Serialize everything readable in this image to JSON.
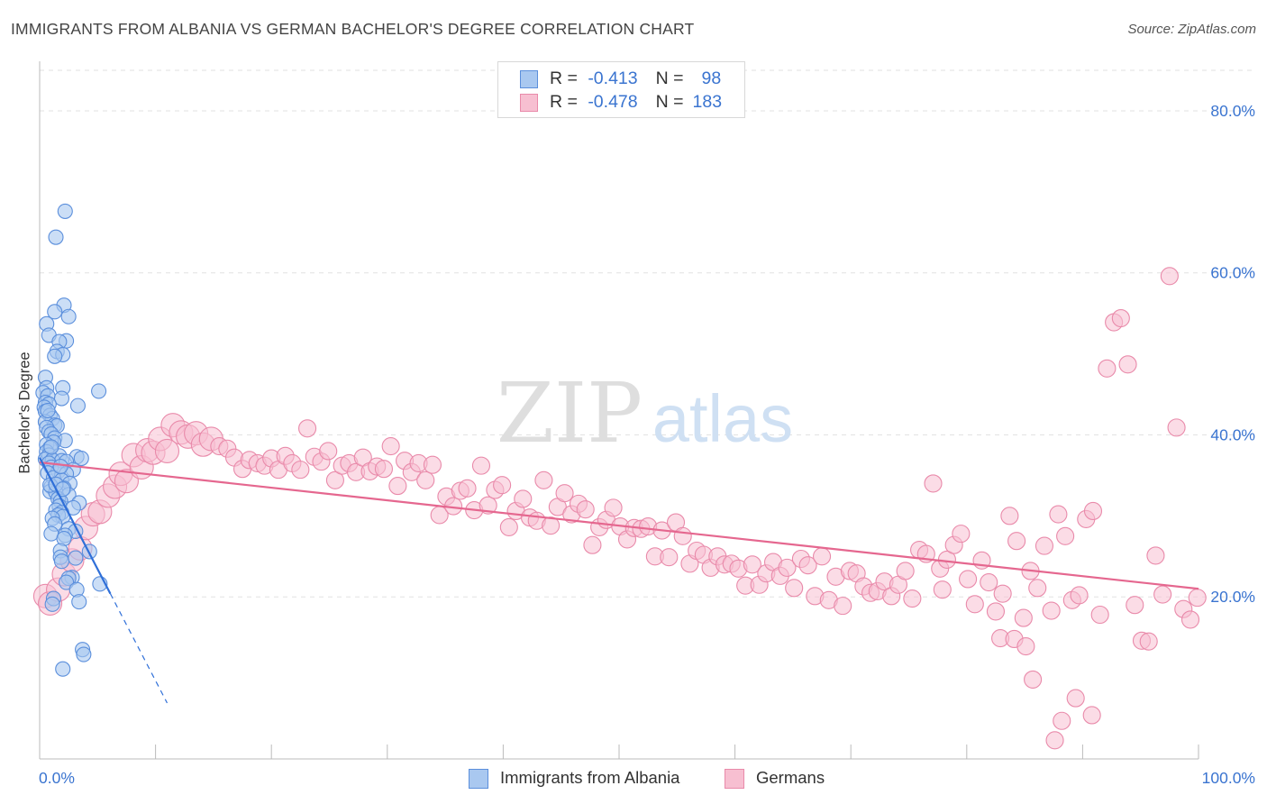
{
  "title": "IMMIGRANTS FROM ALBANIA VS GERMAN BACHELOR'S DEGREE CORRELATION CHART",
  "source": "Source: ZipAtlas.com",
  "watermark": {
    "zip": "ZIP",
    "atlas": "atlas"
  },
  "legend": {
    "r_label": "R =",
    "n_label": "N =",
    "albania": {
      "r": "-0.413",
      "n": "98"
    },
    "germans": {
      "r": "-0.478",
      "n": "183"
    }
  },
  "colors": {
    "albania_fill": "#a9c8f0",
    "albania_stroke": "#5b8fdc",
    "albania_line": "#2f6fd8",
    "germans_fill": "#f7bfd1",
    "germans_stroke": "#e98aaa",
    "germans_line": "#e5678f",
    "axis_text": "#3a74d0",
    "grid": "#e2e2e2"
  },
  "chart_data": {
    "type": "scatter",
    "title": "IMMIGRANTS FROM ALBANIA VS GERMAN BACHELOR'S DEGREE CORRELATION CHART",
    "xlabel": "",
    "ylabel": "Bachelor's Degree",
    "xlim": [
      0,
      100
    ],
    "ylim": [
      0,
      85
    ],
    "x_tick_labels": [
      "0.0%",
      "100.0%"
    ],
    "y_ticks": [
      20,
      40,
      60,
      80
    ],
    "y_tick_labels": [
      "20.0%",
      "40.0%",
      "60.0%",
      "80.0%"
    ],
    "grid": true,
    "legend_position": "bottom",
    "series": [
      {
        "name": "Immigrants from Albania",
        "trend": {
          "x0": 0.0,
          "y0": 37.2,
          "x1": 6.1,
          "y1": 20.4,
          "dashed_to_x": 11.0
        },
        "points": [
          [
            2.2,
            67.6
          ],
          [
            1.4,
            64.4
          ],
          [
            2.1,
            56.0
          ],
          [
            1.3,
            55.2
          ],
          [
            2.5,
            54.6
          ],
          [
            0.6,
            53.7
          ],
          [
            0.8,
            52.3
          ],
          [
            2.3,
            51.6
          ],
          [
            1.7,
            51.5
          ],
          [
            1.5,
            50.3
          ],
          [
            2.0,
            49.9
          ],
          [
            1.3,
            49.7
          ],
          [
            0.5,
            47.1
          ],
          [
            0.6,
            45.8
          ],
          [
            2.0,
            45.8
          ],
          [
            5.1,
            45.4
          ],
          [
            0.3,
            45.2
          ],
          [
            0.7,
            44.8
          ],
          [
            1.9,
            44.5
          ],
          [
            0.5,
            44.0
          ],
          [
            0.8,
            43.8
          ],
          [
            3.3,
            43.6
          ],
          [
            0.4,
            43.4
          ],
          [
            0.5,
            42.9
          ],
          [
            0.9,
            42.4
          ],
          [
            1.1,
            42.0
          ],
          [
            0.5,
            41.6
          ],
          [
            1.3,
            41.2
          ],
          [
            1.5,
            41.1
          ],
          [
            0.6,
            40.9
          ],
          [
            0.8,
            40.4
          ],
          [
            1.0,
            40.1
          ],
          [
            1.3,
            39.6
          ],
          [
            2.2,
            39.3
          ],
          [
            1.2,
            39.1
          ],
          [
            0.6,
            38.8
          ],
          [
            0.9,
            38.4
          ],
          [
            0.6,
            37.9
          ],
          [
            0.8,
            37.5
          ],
          [
            1.7,
            37.4
          ],
          [
            3.2,
            37.3
          ],
          [
            3.6,
            37.1
          ],
          [
            0.5,
            37.0
          ],
          [
            1.1,
            36.9
          ],
          [
            1.9,
            36.8
          ],
          [
            2.3,
            36.7
          ],
          [
            0.8,
            36.5
          ],
          [
            1.0,
            36.0
          ],
          [
            2.9,
            35.7
          ],
          [
            1.6,
            35.5
          ],
          [
            0.7,
            35.3
          ],
          [
            2.3,
            35.2
          ],
          [
            1.2,
            34.7
          ],
          [
            1.9,
            34.4
          ],
          [
            2.6,
            34.0
          ],
          [
            1.0,
            33.6
          ],
          [
            2.1,
            33.4
          ],
          [
            0.9,
            33.0
          ],
          [
            1.4,
            32.9
          ],
          [
            2.5,
            32.6
          ],
          [
            1.6,
            32.1
          ],
          [
            1.8,
            31.8
          ],
          [
            3.4,
            31.6
          ],
          [
            1.7,
            31.2
          ],
          [
            2.9,
            31.0
          ],
          [
            1.4,
            30.7
          ],
          [
            1.9,
            30.4
          ],
          [
            1.6,
            30.1
          ],
          [
            2.0,
            29.9
          ],
          [
            1.1,
            29.7
          ],
          [
            1.3,
            29.0
          ],
          [
            2.5,
            28.4
          ],
          [
            3.1,
            28.1
          ],
          [
            1.0,
            27.8
          ],
          [
            2.2,
            27.6
          ],
          [
            2.1,
            27.2
          ],
          [
            1.8,
            25.7
          ],
          [
            4.3,
            25.6
          ],
          [
            1.8,
            24.9
          ],
          [
            3.1,
            24.8
          ],
          [
            1.9,
            24.4
          ],
          [
            2.8,
            22.4
          ],
          [
            2.5,
            22.3
          ],
          [
            2.3,
            21.8
          ],
          [
            5.2,
            21.6
          ],
          [
            3.2,
            20.9
          ],
          [
            1.2,
            19.8
          ],
          [
            3.4,
            19.4
          ],
          [
            1.1,
            19.1
          ],
          [
            3.7,
            13.5
          ],
          [
            3.8,
            12.9
          ],
          [
            2.0,
            11.1
          ],
          [
            0.9,
            33.8
          ],
          [
            1.4,
            33.9
          ],
          [
            0.7,
            43.0
          ],
          [
            1.0,
            38.5
          ],
          [
            2.0,
            33.3
          ],
          [
            1.8,
            36.1
          ]
        ]
      },
      {
        "name": "Germans",
        "trend": {
          "x0": 0.0,
          "y0": 36.6,
          "x1": 100.0,
          "y1": 21.0
        },
        "points": [
          [
            0.5,
            20.1
          ],
          [
            0.9,
            19.2
          ],
          [
            1.6,
            20.9
          ],
          [
            2.1,
            22.8
          ],
          [
            2.8,
            24.5
          ],
          [
            3.5,
            26.0
          ],
          [
            4.0,
            28.5
          ],
          [
            4.6,
            30.2
          ],
          [
            5.2,
            30.5
          ],
          [
            5.9,
            32.5
          ],
          [
            6.5,
            33.6
          ],
          [
            7.0,
            35.2
          ],
          [
            7.5,
            34.3
          ],
          [
            8.1,
            37.5
          ],
          [
            8.8,
            36.0
          ],
          [
            9.3,
            38.1
          ],
          [
            9.8,
            37.8
          ],
          [
            10.4,
            39.5
          ],
          [
            11.0,
            38.0
          ],
          [
            11.5,
            41.2
          ],
          [
            12.2,
            40.3
          ],
          [
            12.8,
            39.8
          ],
          [
            13.5,
            40.2
          ],
          [
            14.1,
            38.8
          ],
          [
            14.8,
            39.5
          ],
          [
            15.5,
            38.6
          ],
          [
            16.2,
            38.3
          ],
          [
            16.8,
            37.2
          ],
          [
            17.5,
            35.8
          ],
          [
            18.1,
            36.9
          ],
          [
            18.8,
            36.5
          ],
          [
            19.4,
            36.2
          ],
          [
            20.0,
            37.1
          ],
          [
            20.6,
            35.7
          ],
          [
            21.2,
            37.4
          ],
          [
            21.8,
            36.5
          ],
          [
            22.5,
            35.7
          ],
          [
            23.1,
            40.8
          ],
          [
            23.7,
            37.3
          ],
          [
            24.3,
            36.7
          ],
          [
            24.9,
            38.0
          ],
          [
            25.5,
            34.4
          ],
          [
            26.1,
            36.2
          ],
          [
            26.7,
            36.5
          ],
          [
            27.3,
            35.4
          ],
          [
            27.9,
            37.2
          ],
          [
            28.5,
            35.5
          ],
          [
            29.1,
            36.1
          ],
          [
            29.7,
            35.8
          ],
          [
            30.3,
            38.6
          ],
          [
            30.9,
            33.7
          ],
          [
            31.5,
            36.8
          ],
          [
            32.1,
            35.4
          ],
          [
            32.7,
            36.5
          ],
          [
            33.3,
            34.4
          ],
          [
            33.9,
            36.3
          ],
          [
            34.5,
            30.1
          ],
          [
            35.1,
            32.4
          ],
          [
            35.7,
            31.2
          ],
          [
            36.3,
            33.1
          ],
          [
            36.9,
            33.4
          ],
          [
            37.5,
            30.7
          ],
          [
            38.1,
            36.2
          ],
          [
            38.7,
            31.3
          ],
          [
            39.3,
            33.2
          ],
          [
            39.9,
            33.8
          ],
          [
            40.5,
            28.6
          ],
          [
            41.1,
            30.6
          ],
          [
            41.7,
            32.1
          ],
          [
            42.3,
            29.8
          ],
          [
            42.9,
            29.4
          ],
          [
            43.5,
            34.4
          ],
          [
            44.1,
            28.8
          ],
          [
            44.7,
            31.1
          ],
          [
            45.3,
            32.8
          ],
          [
            45.9,
            30.2
          ],
          [
            46.5,
            31.5
          ],
          [
            47.1,
            30.8
          ],
          [
            47.7,
            26.4
          ],
          [
            48.3,
            28.6
          ],
          [
            48.9,
            29.5
          ],
          [
            49.5,
            31.0
          ],
          [
            50.1,
            28.7
          ],
          [
            50.7,
            27.1
          ],
          [
            51.3,
            28.5
          ],
          [
            51.9,
            28.4
          ],
          [
            52.5,
            28.7
          ],
          [
            53.1,
            25.0
          ],
          [
            53.7,
            28.2
          ],
          [
            54.3,
            24.9
          ],
          [
            54.9,
            29.2
          ],
          [
            55.5,
            27.5
          ],
          [
            56.1,
            24.1
          ],
          [
            56.7,
            25.7
          ],
          [
            57.3,
            25.2
          ],
          [
            57.9,
            23.6
          ],
          [
            58.5,
            25.0
          ],
          [
            59.1,
            24.0
          ],
          [
            59.7,
            24.1
          ],
          [
            60.3,
            23.5
          ],
          [
            60.9,
            21.4
          ],
          [
            61.5,
            24.0
          ],
          [
            62.1,
            21.5
          ],
          [
            62.7,
            22.9
          ],
          [
            63.3,
            24.3
          ],
          [
            63.9,
            22.6
          ],
          [
            64.5,
            23.6
          ],
          [
            65.1,
            21.1
          ],
          [
            65.7,
            24.7
          ],
          [
            66.3,
            23.9
          ],
          [
            66.9,
            20.1
          ],
          [
            67.5,
            25.0
          ],
          [
            68.1,
            19.6
          ],
          [
            68.7,
            22.5
          ],
          [
            69.3,
            18.9
          ],
          [
            69.9,
            23.2
          ],
          [
            70.5,
            22.9
          ],
          [
            71.1,
            21.3
          ],
          [
            71.7,
            20.5
          ],
          [
            72.3,
            20.7
          ],
          [
            72.9,
            21.9
          ],
          [
            73.5,
            20.1
          ],
          [
            74.1,
            21.5
          ],
          [
            74.7,
            23.2
          ],
          [
            75.3,
            19.8
          ],
          [
            75.9,
            25.8
          ],
          [
            76.5,
            25.3
          ],
          [
            77.1,
            34.0
          ],
          [
            77.7,
            23.5
          ],
          [
            78.3,
            24.6
          ],
          [
            78.9,
            26.4
          ],
          [
            79.5,
            27.8
          ],
          [
            80.1,
            22.2
          ],
          [
            80.7,
            19.1
          ],
          [
            81.3,
            24.5
          ],
          [
            81.9,
            21.8
          ],
          [
            82.5,
            18.2
          ],
          [
            83.1,
            20.4
          ],
          [
            83.7,
            30.0
          ],
          [
            84.3,
            26.9
          ],
          [
            84.9,
            17.4
          ],
          [
            85.5,
            23.2
          ],
          [
            86.1,
            21.1
          ],
          [
            86.7,
            26.3
          ],
          [
            87.3,
            18.3
          ],
          [
            87.9,
            30.2
          ],
          [
            88.5,
            27.5
          ],
          [
            89.1,
            19.6
          ],
          [
            89.7,
            20.2
          ],
          [
            90.3,
            29.6
          ],
          [
            90.9,
            30.6
          ],
          [
            91.5,
            17.8
          ],
          [
            92.1,
            48.2
          ],
          [
            92.7,
            53.9
          ],
          [
            93.3,
            54.4
          ],
          [
            93.9,
            48.7
          ],
          [
            94.5,
            19.0
          ],
          [
            95.1,
            14.6
          ],
          [
            95.7,
            14.5
          ],
          [
            96.3,
            25.1
          ],
          [
            96.9,
            20.3
          ],
          [
            97.5,
            59.6
          ],
          [
            98.1,
            40.9
          ],
          [
            98.7,
            18.5
          ],
          [
            99.3,
            17.2
          ],
          [
            99.9,
            19.9
          ],
          [
            89.4,
            7.5
          ],
          [
            85.7,
            9.8
          ],
          [
            90.8,
            5.4
          ],
          [
            87.6,
            2.3
          ],
          [
            88.2,
            4.7
          ],
          [
            82.9,
            14.9
          ],
          [
            84.1,
            14.8
          ],
          [
            85.1,
            13.9
          ],
          [
            77.9,
            20.9
          ]
        ]
      }
    ]
  }
}
